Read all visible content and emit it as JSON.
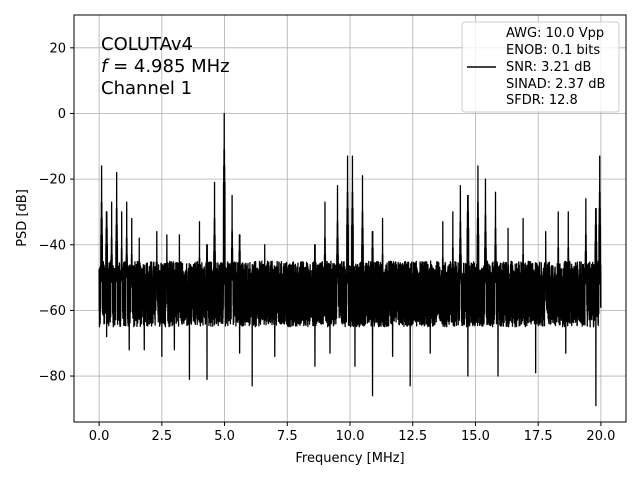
{
  "chart_data": {
    "type": "line",
    "xlabel": "Frequency [MHz]",
    "ylabel": "PSD [dB]",
    "xlim": [
      -1.0,
      21.0
    ],
    "ylim": [
      -94,
      30
    ],
    "xticks": [
      0.0,
      2.5,
      5.0,
      7.5,
      10.0,
      12.5,
      15.0,
      17.5,
      20.0
    ],
    "xtick_labels": [
      "0.0",
      "2.5",
      "5.0",
      "7.5",
      "10.0",
      "12.5",
      "15.0",
      "17.5",
      "20.0"
    ],
    "yticks": [
      -80,
      -60,
      -40,
      -20,
      0,
      20
    ],
    "ytick_labels": [
      "−80",
      "−60",
      "−40",
      "−20",
      "0",
      "20"
    ],
    "grid": true,
    "annotation": {
      "line1": "COLUTAv4",
      "line2_italic": "f",
      "line2_rest": " = 4.985 MHz",
      "line3": "Channel 1"
    },
    "legend": {
      "placement": "top-right",
      "lines": [
        "AWG: 10.0 Vpp",
        "ENOB: 0.1 bits",
        "SNR: 3.21 dB",
        "SINAD: 2.37 dB",
        "SFDR: 12.8"
      ]
    },
    "series": [
      {
        "color": "#000000",
        "noise_floor": -55,
        "frequency_range": [
          0.0,
          20.0
        ],
        "peaks": [
          {
            "x": 0.1,
            "y": -16
          },
          {
            "x": 0.3,
            "y": -19
          },
          {
            "x": 0.5,
            "y": -27
          },
          {
            "x": 0.7,
            "y": -18
          },
          {
            "x": 0.9,
            "y": -30
          },
          {
            "x": 1.1,
            "y": -27
          },
          {
            "x": 1.3,
            "y": -32
          },
          {
            "x": 1.6,
            "y": -38
          },
          {
            "x": 2.3,
            "y": -36
          },
          {
            "x": 2.7,
            "y": -37
          },
          {
            "x": 3.2,
            "y": -37
          },
          {
            "x": 3.6,
            "y": -38
          },
          {
            "x": 4.0,
            "y": -33
          },
          {
            "x": 4.3,
            "y": -29
          },
          {
            "x": 4.6,
            "y": -21
          },
          {
            "x": 4.985,
            "y": 0
          },
          {
            "x": 5.3,
            "y": -25
          },
          {
            "x": 5.6,
            "y": -26
          },
          {
            "x": 6.1,
            "y": -38
          },
          {
            "x": 6.6,
            "y": -40
          },
          {
            "x": 8.6,
            "y": -29
          },
          {
            "x": 9.0,
            "y": -27
          },
          {
            "x": 9.5,
            "y": -22
          },
          {
            "x": 9.9,
            "y": -13
          },
          {
            "x": 10.1,
            "y": -13
          },
          {
            "x": 10.5,
            "y": -19
          },
          {
            "x": 10.9,
            "y": -25
          },
          {
            "x": 11.3,
            "y": -32
          },
          {
            "x": 13.7,
            "y": -33
          },
          {
            "x": 14.1,
            "y": -30
          },
          {
            "x": 14.4,
            "y": -22
          },
          {
            "x": 14.7,
            "y": -14
          },
          {
            "x": 15.1,
            "y": -16
          },
          {
            "x": 15.4,
            "y": -20
          },
          {
            "x": 15.8,
            "y": -24
          },
          {
            "x": 16.3,
            "y": -35
          },
          {
            "x": 16.9,
            "y": -32
          },
          {
            "x": 17.4,
            "y": -35
          },
          {
            "x": 17.8,
            "y": -36
          },
          {
            "x": 18.3,
            "y": -30
          },
          {
            "x": 18.7,
            "y": -30
          },
          {
            "x": 19.4,
            "y": -26
          },
          {
            "x": 19.8,
            "y": -18
          },
          {
            "x": 19.95,
            "y": -13
          }
        ],
        "dips": [
          {
            "x": 0.3,
            "y": -68
          },
          {
            "x": 1.2,
            "y": -72
          },
          {
            "x": 1.8,
            "y": -72
          },
          {
            "x": 2.5,
            "y": -74
          },
          {
            "x": 3.0,
            "y": -72
          },
          {
            "x": 3.6,
            "y": -81
          },
          {
            "x": 4.3,
            "y": -81
          },
          {
            "x": 5.6,
            "y": -73
          },
          {
            "x": 6.1,
            "y": -83
          },
          {
            "x": 7.0,
            "y": -74
          },
          {
            "x": 8.6,
            "y": -77
          },
          {
            "x": 9.2,
            "y": -73
          },
          {
            "x": 10.2,
            "y": -77
          },
          {
            "x": 10.9,
            "y": -86
          },
          {
            "x": 11.7,
            "y": -74
          },
          {
            "x": 12.4,
            "y": -83
          },
          {
            "x": 13.2,
            "y": -73
          },
          {
            "x": 14.7,
            "y": -80
          },
          {
            "x": 15.9,
            "y": -80
          },
          {
            "x": 17.4,
            "y": -79
          },
          {
            "x": 18.6,
            "y": -73
          },
          {
            "x": 19.8,
            "y": -89
          }
        ]
      }
    ]
  }
}
